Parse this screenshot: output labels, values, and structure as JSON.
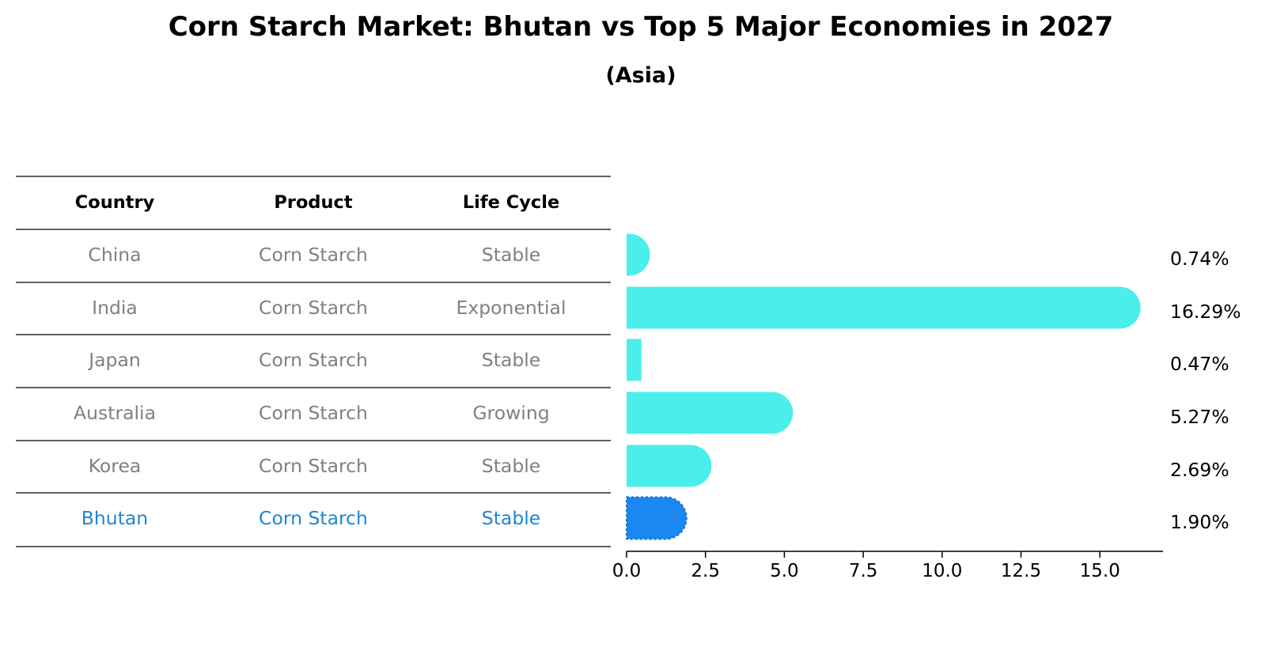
{
  "title": "Corn Starch Market: Bhutan vs Top 5 Major Economies in 2027",
  "subtitle": "(Asia)",
  "table": {
    "headers": [
      "Country",
      "Product",
      "Life Cycle"
    ],
    "rows": [
      [
        "China",
        "Corn Starch",
        "Stable"
      ],
      [
        "India",
        "Corn Starch",
        "Exponential"
      ],
      [
        "Japan",
        "Corn Starch",
        "Stable"
      ],
      [
        "Australia",
        "Corn Starch",
        "Growing"
      ],
      [
        "Korea",
        "Corn Starch",
        "Stable"
      ],
      [
        "Bhutan",
        "Corn Starch",
        "Stable"
      ]
    ],
    "highlight_row": "Bhutan"
  },
  "colors": {
    "bar": "#4aeeea",
    "highlight_bar": "#1a88f0",
    "highlight_text": "#1e88d2",
    "muted_text": "#808080"
  },
  "chart_data": {
    "type": "bar",
    "orientation": "horizontal",
    "categories": [
      "China",
      "India",
      "Japan",
      "Australia",
      "Korea",
      "Bhutan"
    ],
    "values": [
      0.74,
      16.29,
      0.47,
      5.27,
      2.69,
      1.9
    ],
    "value_labels": [
      "0.74%",
      "16.29%",
      "0.47%",
      "5.27%",
      "2.69%",
      "1.90%"
    ],
    "highlight": "Bhutan",
    "xlim": [
      0,
      17
    ],
    "xticks": [
      0.0,
      2.5,
      5.0,
      7.5,
      10.0,
      12.5,
      15.0
    ],
    "xtick_labels": [
      "0.0",
      "2.5",
      "5.0",
      "7.5",
      "10.0",
      "12.5",
      "15.0"
    ],
    "title": "Corn Starch Market: Bhutan vs Top 5 Major Economies in 2027",
    "subtitle": "(Asia)",
    "xlabel": "",
    "ylabel": "",
    "grid": false
  }
}
